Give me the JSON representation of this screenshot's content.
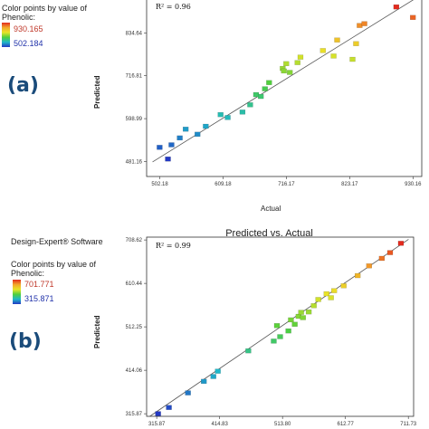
{
  "chart_data": [
    {
      "type": "scatter",
      "panel_label": "(a)",
      "header_text": "",
      "title": "",
      "xlabel": "Actual",
      "ylabel": "Predicted",
      "legend": {
        "title_line1": "Color points by value of",
        "title_line2": "Phenolic:",
        "max": "930.165",
        "min": "502.184"
      },
      "annotation": "R² = 0.96",
      "x_ticks": [
        "502.18",
        "609.18",
        "716.17",
        "823.17",
        "930.16"
      ],
      "y_ticks": [
        "481.16",
        "598.99",
        "716.81",
        "834.64"
      ],
      "xlim": [
        480,
        945
      ],
      "ylim": [
        440,
        930
      ],
      "fit_line": [
        [
          490,
          480
        ],
        [
          940,
          935
        ]
      ],
      "points": [
        {
          "x": 502,
          "y": 520
        },
        {
          "x": 516,
          "y": 488
        },
        {
          "x": 522,
          "y": 527
        },
        {
          "x": 536,
          "y": 546
        },
        {
          "x": 546,
          "y": 570
        },
        {
          "x": 566,
          "y": 556
        },
        {
          "x": 580,
          "y": 578
        },
        {
          "x": 605,
          "y": 610
        },
        {
          "x": 617,
          "y": 602
        },
        {
          "x": 642,
          "y": 617
        },
        {
          "x": 655,
          "y": 637
        },
        {
          "x": 665,
          "y": 665
        },
        {
          "x": 673,
          "y": 660
        },
        {
          "x": 680,
          "y": 681
        },
        {
          "x": 687,
          "y": 698
        },
        {
          "x": 710,
          "y": 737
        },
        {
          "x": 716,
          "y": 750
        },
        {
          "x": 722,
          "y": 726
        },
        {
          "x": 740,
          "y": 768
        },
        {
          "x": 778,
          "y": 786
        },
        {
          "x": 802,
          "y": 815
        },
        {
          "x": 796,
          "y": 771
        },
        {
          "x": 828,
          "y": 762
        },
        {
          "x": 840,
          "y": 855
        },
        {
          "x": 834,
          "y": 805
        },
        {
          "x": 848,
          "y": 860
        },
        {
          "x": 902,
          "y": 906
        },
        {
          "x": 930,
          "y": 877
        },
        {
          "x": 712,
          "y": 730
        },
        {
          "x": 735,
          "y": 753
        }
      ]
    },
    {
      "type": "scatter",
      "panel_label": "(b)",
      "header_text": "Design-Expert® Software",
      "title": "Predicted vs. Actual",
      "xlabel": "",
      "ylabel": "Predicted",
      "legend": {
        "title_line1": "Color points by value of",
        "title_line2": "Phenolic:",
        "max": "701.771",
        "min": "315.871"
      },
      "annotation": "R² = 0.99",
      "x_ticks": [
        "315.87",
        "414.83",
        "513.80",
        "612.77",
        "711.73"
      ],
      "y_ticks": [
        "315.87",
        "414.06",
        "512.25",
        "610.44",
        "708.62"
      ],
      "xlim": [
        300,
        720
      ],
      "ylim": [
        310,
        715
      ],
      "fit_line": [
        [
          305,
          310
        ],
        [
          712,
          710
        ]
      ],
      "points": [
        {
          "x": 318,
          "y": 316
        },
        {
          "x": 335,
          "y": 330
        },
        {
          "x": 365,
          "y": 363
        },
        {
          "x": 390,
          "y": 389
        },
        {
          "x": 405,
          "y": 400
        },
        {
          "x": 412,
          "y": 412
        },
        {
          "x": 460,
          "y": 458
        },
        {
          "x": 500,
          "y": 480
        },
        {
          "x": 505,
          "y": 515
        },
        {
          "x": 510,
          "y": 490
        },
        {
          "x": 523,
          "y": 503
        },
        {
          "x": 533,
          "y": 518
        },
        {
          "x": 539,
          "y": 536
        },
        {
          "x": 546,
          "y": 533
        },
        {
          "x": 555,
          "y": 546
        },
        {
          "x": 563,
          "y": 560
        },
        {
          "x": 570,
          "y": 574
        },
        {
          "x": 583,
          "y": 587
        },
        {
          "x": 590,
          "y": 578
        },
        {
          "x": 595,
          "y": 594
        },
        {
          "x": 610,
          "y": 605
        },
        {
          "x": 632,
          "y": 628
        },
        {
          "x": 650,
          "y": 650
        },
        {
          "x": 670,
          "y": 667
        },
        {
          "x": 683,
          "y": 680
        },
        {
          "x": 700,
          "y": 701
        },
        {
          "x": 527,
          "y": 528
        },
        {
          "x": 543,
          "y": 545
        }
      ]
    }
  ]
}
